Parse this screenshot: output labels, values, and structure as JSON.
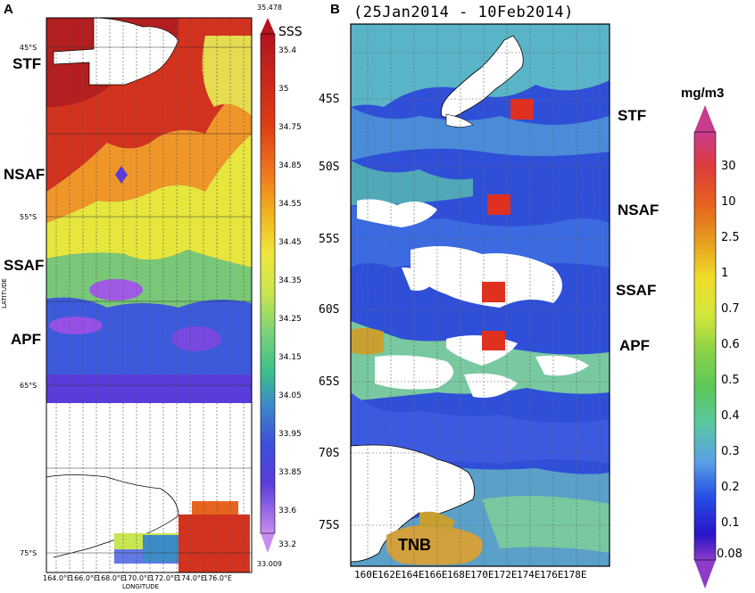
{
  "panel_a": {
    "letter": "A",
    "colorbar_title": "SSS",
    "colorbar_max": "35.478",
    "colorbar_min": "33.009",
    "colorbar_levels": [
      "35.4",
      "35",
      "34.75",
      "34.85",
      "34.55",
      "34.45",
      "34.35",
      "34.25",
      "34.15",
      "34.05",
      "33.95",
      "33.85",
      "33.6",
      "33.2"
    ],
    "lat_ticks": [
      "45°S",
      "55°S",
      "65°S",
      "75°S"
    ],
    "lon_ticks": [
      "164.0°E",
      "166.0°E",
      "168.0°E",
      "170.0°E",
      "172.0°E",
      "174.0°E",
      "176.0°E"
    ],
    "y_axis_label": "LATITUDE",
    "x_axis_label": "LONGITUDE",
    "fronts": [
      "STF",
      "NSAF",
      "SSAF",
      "APF"
    ]
  },
  "panel_b": {
    "letter": "B",
    "title": "(25Jan2014 - 10Feb2014)",
    "lat_ticks": [
      "45S",
      "50S",
      "55S",
      "60S",
      "65S",
      "70S",
      "75S"
    ],
    "lon_ticks": [
      "160E",
      "162E",
      "164E",
      "166E",
      "168E",
      "170E",
      "172E",
      "174E",
      "176E",
      "178E"
    ],
    "colorbar_title": "mg/m3",
    "colorbar_levels": [
      "30",
      "10",
      "2.5",
      "1",
      "0.7",
      "0.6",
      "0.5",
      "0.4",
      "0.3",
      "0.2",
      "0.1",
      "0.08"
    ],
    "fronts": [
      "STF",
      "NSAF",
      "SSAF",
      "APF"
    ],
    "place_label": "TNB"
  },
  "colors": {
    "sss_high": "#c81e1e",
    "sss_mid": "#f0e63c",
    "sss_low": "#5a3cdc",
    "chl_low": "#2f4fd8",
    "chl_mid": "#6ad0a0",
    "station": "#e03020",
    "land": "#ffffff"
  }
}
